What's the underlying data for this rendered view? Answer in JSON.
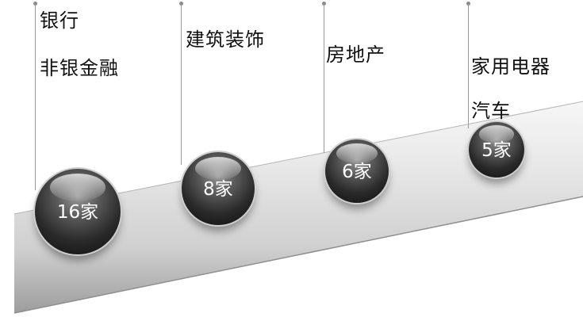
{
  "columns": [
    {
      "labels": [
        "银行",
        "非银金融"
      ],
      "count": "16家"
    },
    {
      "labels": [
        "建筑装饰"
      ],
      "count": "8家"
    },
    {
      "labels": [
        "房地产"
      ],
      "count": "6家"
    },
    {
      "labels": [
        "家用电器",
        "汽车"
      ],
      "count": "5家"
    }
  ]
}
